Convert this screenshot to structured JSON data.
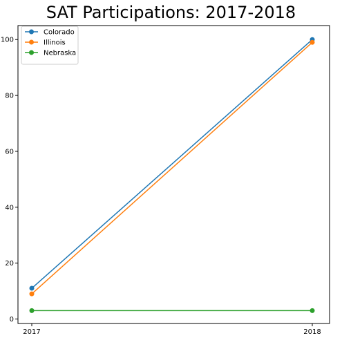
{
  "chart_data": {
    "type": "line",
    "title": "SAT Participations: 2017-2018",
    "xlabel": "",
    "ylabel": "",
    "categories": [
      "2017",
      "2018"
    ],
    "ylim": [
      -1.6,
      105
    ],
    "yticks": [
      0,
      20,
      40,
      60,
      80,
      100
    ],
    "grid": false,
    "legend_placement": "top-left",
    "series": [
      {
        "name": "Colorado",
        "color": "#1f77b4",
        "values": [
          11,
          100
        ]
      },
      {
        "name": "Illinois",
        "color": "#ff7f0e",
        "values": [
          9,
          99
        ]
      },
      {
        "name": "Nebraska",
        "color": "#2ca02c",
        "values": [
          3,
          3
        ]
      }
    ]
  }
}
